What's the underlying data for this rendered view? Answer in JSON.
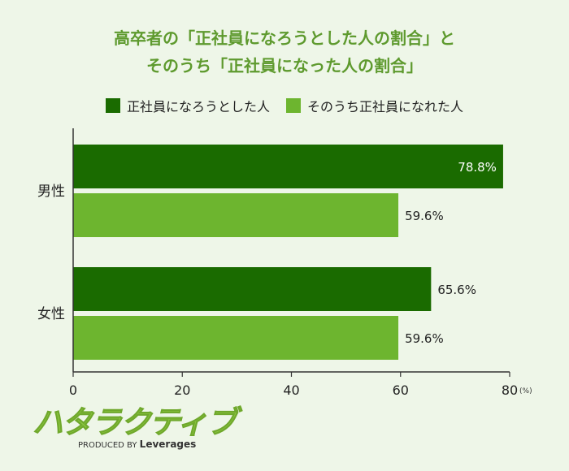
{
  "title": {
    "line1": "高卒者の「正社員になろうとした人の割合」と",
    "line2": "そのうち「正社員になった人の割合」"
  },
  "colors": {
    "dark_green": "#1a6b00",
    "light_green": "#6db52f",
    "title_green": "#5e9a2e",
    "background": "#eef6e8"
  },
  "chart_data": {
    "type": "bar",
    "orientation": "horizontal",
    "categories": [
      "男性",
      "女性"
    ],
    "series": [
      {
        "name": "正社員になろうとした人",
        "values": [
          78.8,
          65.6
        ],
        "labels": [
          "78.8%",
          "65.6%"
        ],
        "color": "#1a6b00"
      },
      {
        "name": "そのうち正社員になれた人",
        "values": [
          59.6,
          59.6
        ],
        "labels": [
          "59.6%",
          "59.6%"
        ],
        "color": "#6db52f"
      }
    ],
    "xlim": [
      0,
      80
    ],
    "xticks": [
      "0",
      "20",
      "40",
      "60",
      "80"
    ],
    "unit_label": "(%)",
    "grid": false,
    "legend_position": "top"
  },
  "logo": {
    "name": "ハタラクティブ",
    "produced_by": "PRODUCED BY",
    "company": "Leverages"
  }
}
